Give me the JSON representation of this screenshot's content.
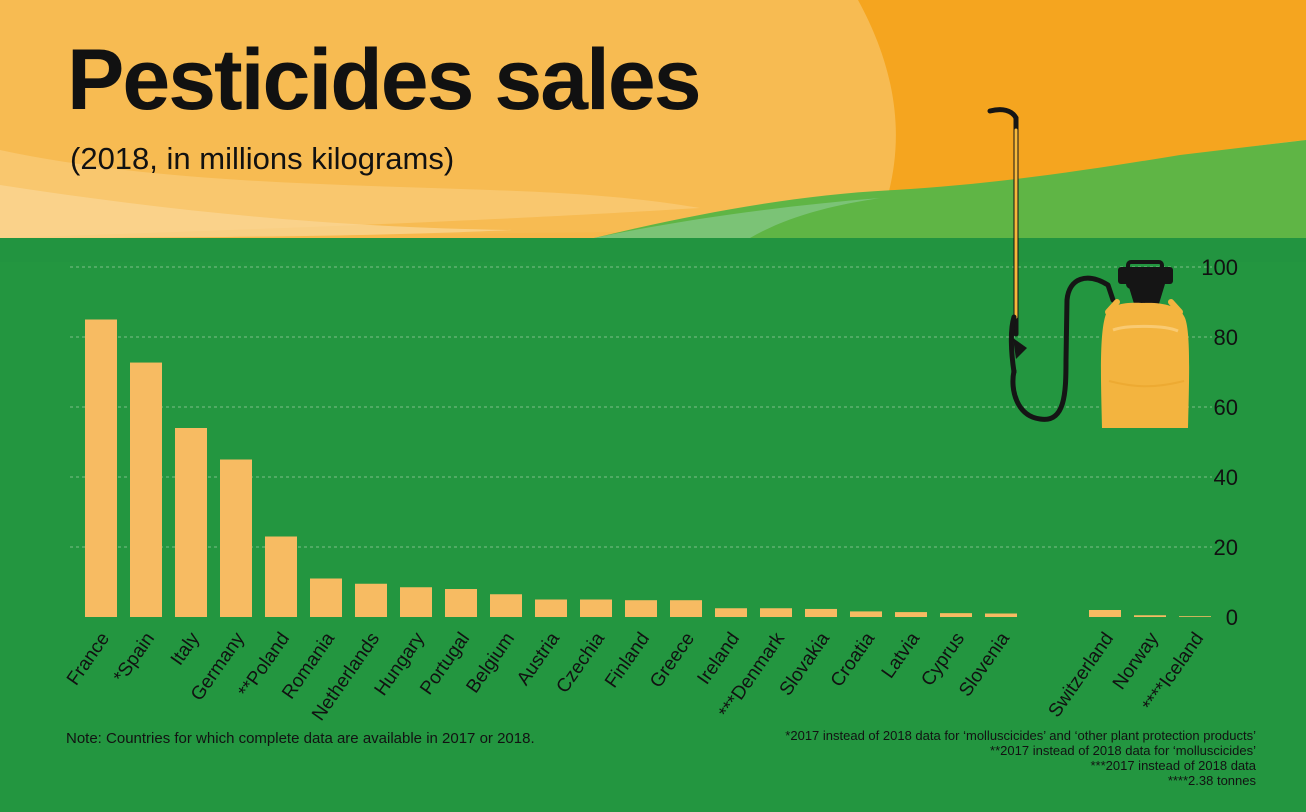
{
  "header": {
    "title": "Pesticides sales",
    "subtitle": "(2018, in millions kilograms)"
  },
  "colors": {
    "yellow_light": "#f7b84b",
    "yellow_mid": "#f9c15c",
    "orange": "#f5a51f",
    "green_dark": "#239640",
    "green_mid": "#2b9a45",
    "green_light": "#5fb545",
    "bar": "#f7bb62",
    "axis_text": "#111111",
    "sprayer_body": "#f3b43f",
    "sprayer_black": "#151515"
  },
  "icons": {
    "sprayer": "garden-pressure-sprayer-icon"
  },
  "footer": {
    "note": "Note: Countries for which complete data are available in 2017 or 2018.",
    "footnotes": [
      "*2017 instead of 2018 data for ‘molluscicides’ and ‘other plant protection products’",
      "**2017 instead of 2018 data for ‘molluscicides’",
      "***2017 instead of 2018 data",
      "****2.38 tonnes"
    ]
  },
  "chart_data": {
    "type": "bar",
    "title": "Pesticides sales",
    "subtitle": "(2018, in millions kilograms)",
    "xlabel": "",
    "ylabel": "",
    "ylim": [
      0,
      100
    ],
    "yticks": [
      0,
      20,
      40,
      60,
      80,
      100
    ],
    "grid": true,
    "legend": "none",
    "categories": [
      "France",
      "*Spain",
      "Italy",
      "Germany",
      "**Poland",
      "Romania",
      "Netherlands",
      "Hungary",
      "Portugal",
      "Belgium",
      "Austria",
      "Czechia",
      "Finland",
      "Greece",
      "Ireland",
      "***Denmark",
      "Slovakia",
      "Croatia",
      "Latvia",
      "Cyprus",
      "Slovenia",
      "Switzerland",
      "Norway",
      "****Iceland"
    ],
    "values": [
      85,
      72.7,
      54,
      45,
      23,
      11,
      9.5,
      8.5,
      8,
      6.5,
      5,
      5,
      4.8,
      4.8,
      2.5,
      2.5,
      2.3,
      1.6,
      1.4,
      1.1,
      1.0,
      2.0,
      0.5,
      0.00238
    ]
  }
}
